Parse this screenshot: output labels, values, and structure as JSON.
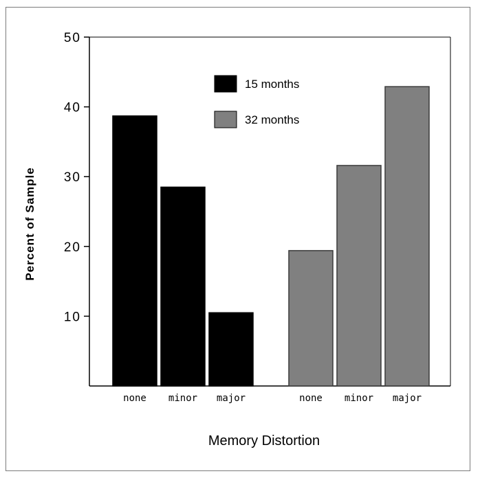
{
  "chart_data": {
    "type": "bar",
    "title": "",
    "xlabel": "Memory Distortion",
    "ylabel": "Percent of Sample",
    "ylim": [
      0,
      50
    ],
    "yticks": [
      "10",
      "20",
      "30",
      "40",
      "50"
    ],
    "yticks_values": [
      10,
      20,
      30,
      40,
      50
    ],
    "legend_position": "top-center",
    "grid": false,
    "series": [
      {
        "name": "15 months",
        "color": "#000000",
        "categories": [
          "none",
          "minor",
          "major"
        ],
        "values": [
          38.7,
          28.5,
          10.5
        ]
      },
      {
        "name": "32 months",
        "color": "#808080",
        "categories": [
          "none",
          "minor",
          "major"
        ],
        "values": [
          19.4,
          31.6,
          42.9
        ]
      }
    ]
  }
}
